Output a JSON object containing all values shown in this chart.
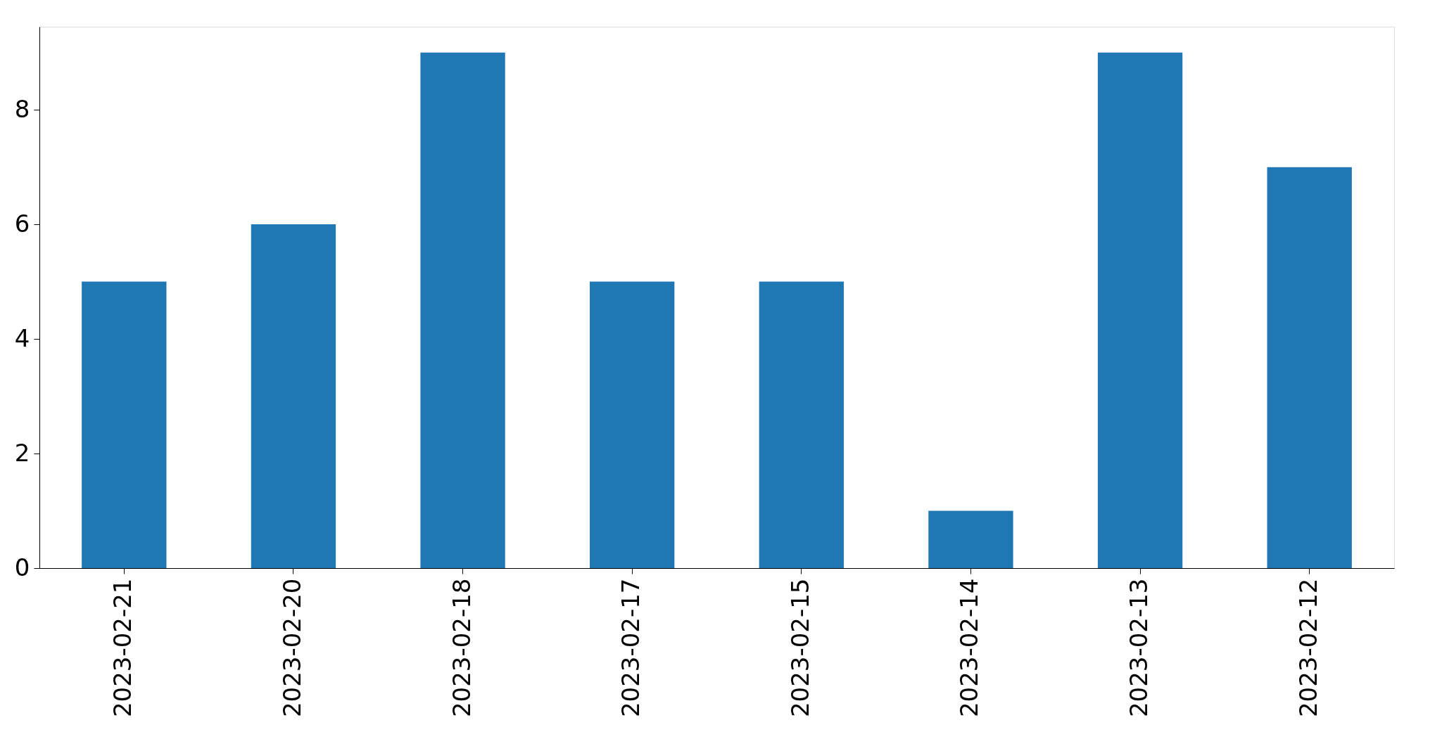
{
  "chart_data": {
    "type": "bar",
    "categories": [
      "2023-02-21",
      "2023-02-20",
      "2023-02-18",
      "2023-02-17",
      "2023-02-15",
      "2023-02-14",
      "2023-02-13",
      "2023-02-12"
    ],
    "values": [
      5,
      6,
      9,
      5,
      5,
      1,
      9,
      7
    ],
    "color": "#1f77b4",
    "ylim": [
      0,
      9.45
    ],
    "yticks": [
      0,
      2,
      4,
      6,
      8
    ],
    "grid": false
  }
}
